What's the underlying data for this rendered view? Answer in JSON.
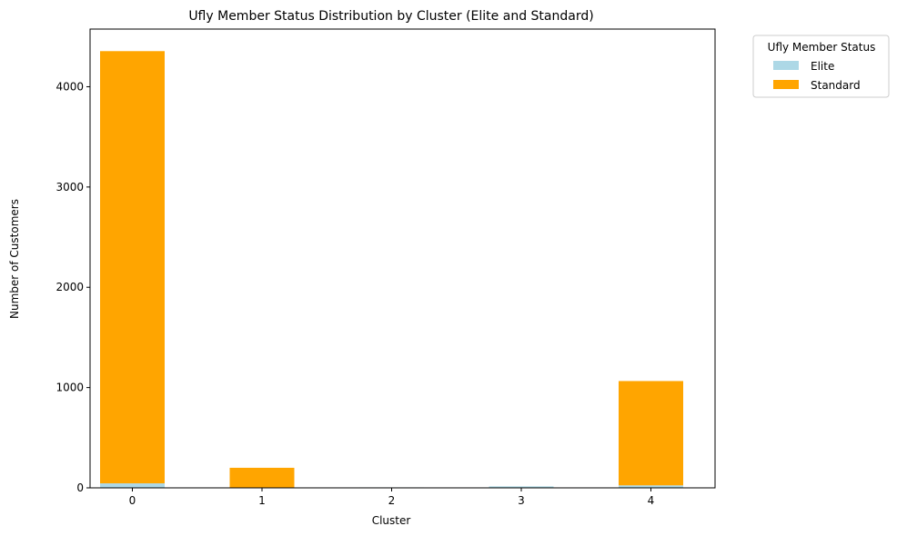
{
  "chart_data": {
    "type": "bar",
    "stacked": true,
    "title": "Ufly Member Status Distribution by Cluster (Elite and Standard)",
    "xlabel": "Cluster",
    "ylabel": "Number of Customers",
    "categories": [
      "0",
      "1",
      "2",
      "3",
      "4"
    ],
    "series": [
      {
        "name": "Elite",
        "color": "#add8e6",
        "values": [
          45,
          3,
          5,
          15,
          25
        ]
      },
      {
        "name": "Standard",
        "color": "#ffa500",
        "values": [
          4310,
          197,
          0,
          0,
          1040
        ]
      }
    ],
    "ylim": [
      0,
      4575
    ],
    "yticks": [
      "0",
      "1000",
      "2000",
      "3000",
      "4000"
    ],
    "grid": false,
    "legend": {
      "title": "Ufly Member Status",
      "placement": "outside-top-right"
    }
  }
}
